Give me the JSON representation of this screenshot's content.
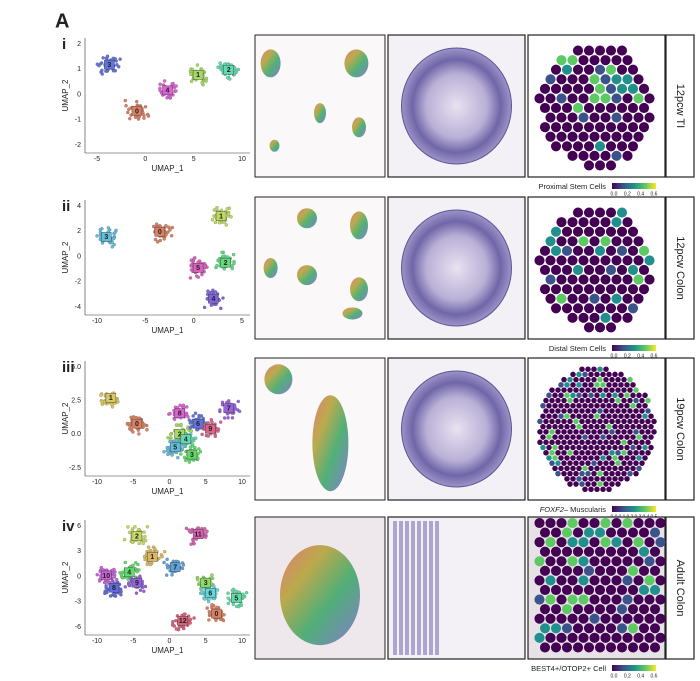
{
  "figure_label": "A",
  "panels": [
    {
      "roman": "i",
      "x_label": "UMAP_1",
      "y_label": "UMAP_2",
      "xticks": [
        "-5",
        "0",
        "5",
        "10"
      ],
      "yticks": [
        "2",
        "1",
        "0",
        "-1",
        "-2"
      ],
      "clusters": [
        "0",
        "1",
        "2",
        "3",
        "4"
      ],
      "sample": "12pcw TI",
      "colorbar_title": "Proximal Stem Cells",
      "colorbar_ticks": [
        "0.0",
        "0.2",
        "0.4",
        "0.6"
      ]
    },
    {
      "roman": "ii",
      "x_label": "UMAP_1",
      "y_label": "UMAP_2",
      "xticks": [
        "-10",
        "-5",
        "0",
        "5"
      ],
      "yticks": [
        "4",
        "2",
        "0",
        "-2",
        "-4"
      ],
      "clusters": [
        "0",
        "1",
        "2",
        "3",
        "4",
        "5"
      ],
      "sample": "12pcw Colon",
      "colorbar_title": "Distal Stem Cells",
      "colorbar_ticks": [
        "0.0",
        "0.2",
        "0.4",
        "0.6"
      ]
    },
    {
      "roman": "iii",
      "x_label": "UMAP_1",
      "y_label": "UMAP_2",
      "xticks": [
        "-10",
        "-5",
        "0",
        "5",
        "10"
      ],
      "yticks": [
        "5.0",
        "2.5",
        "0.0",
        "-2.5"
      ],
      "clusters": [
        "0",
        "1",
        "2",
        "3",
        "4",
        "5",
        "6",
        "7",
        "8",
        "9"
      ],
      "sample": "19pcw Colon",
      "colorbar_title_gene": "FOXF2",
      "colorbar_title": "– Muscularis",
      "colorbar_ticks": [
        "0.0",
        "0.1",
        "0.2",
        "0.3",
        "0.4",
        "0.5"
      ]
    },
    {
      "roman": "iv",
      "x_label": "UMAP_1",
      "y_label": "UMAP_2",
      "xticks": [
        "-10",
        "-5",
        "0",
        "5",
        "10"
      ],
      "yticks": [
        "6",
        "3",
        "0",
        "-3",
        "-6"
      ],
      "clusters": [
        "0",
        "1",
        "2",
        "3",
        "4",
        "5",
        "6",
        "7",
        "8",
        "9",
        "10",
        "11",
        "12"
      ],
      "sample": "Adult Colon",
      "colorbar_title": "BEST4+/OTOP2+ Cell",
      "colorbar_ticks": [
        "0.0",
        "0.2",
        "0.4",
        "0.6"
      ]
    }
  ]
}
